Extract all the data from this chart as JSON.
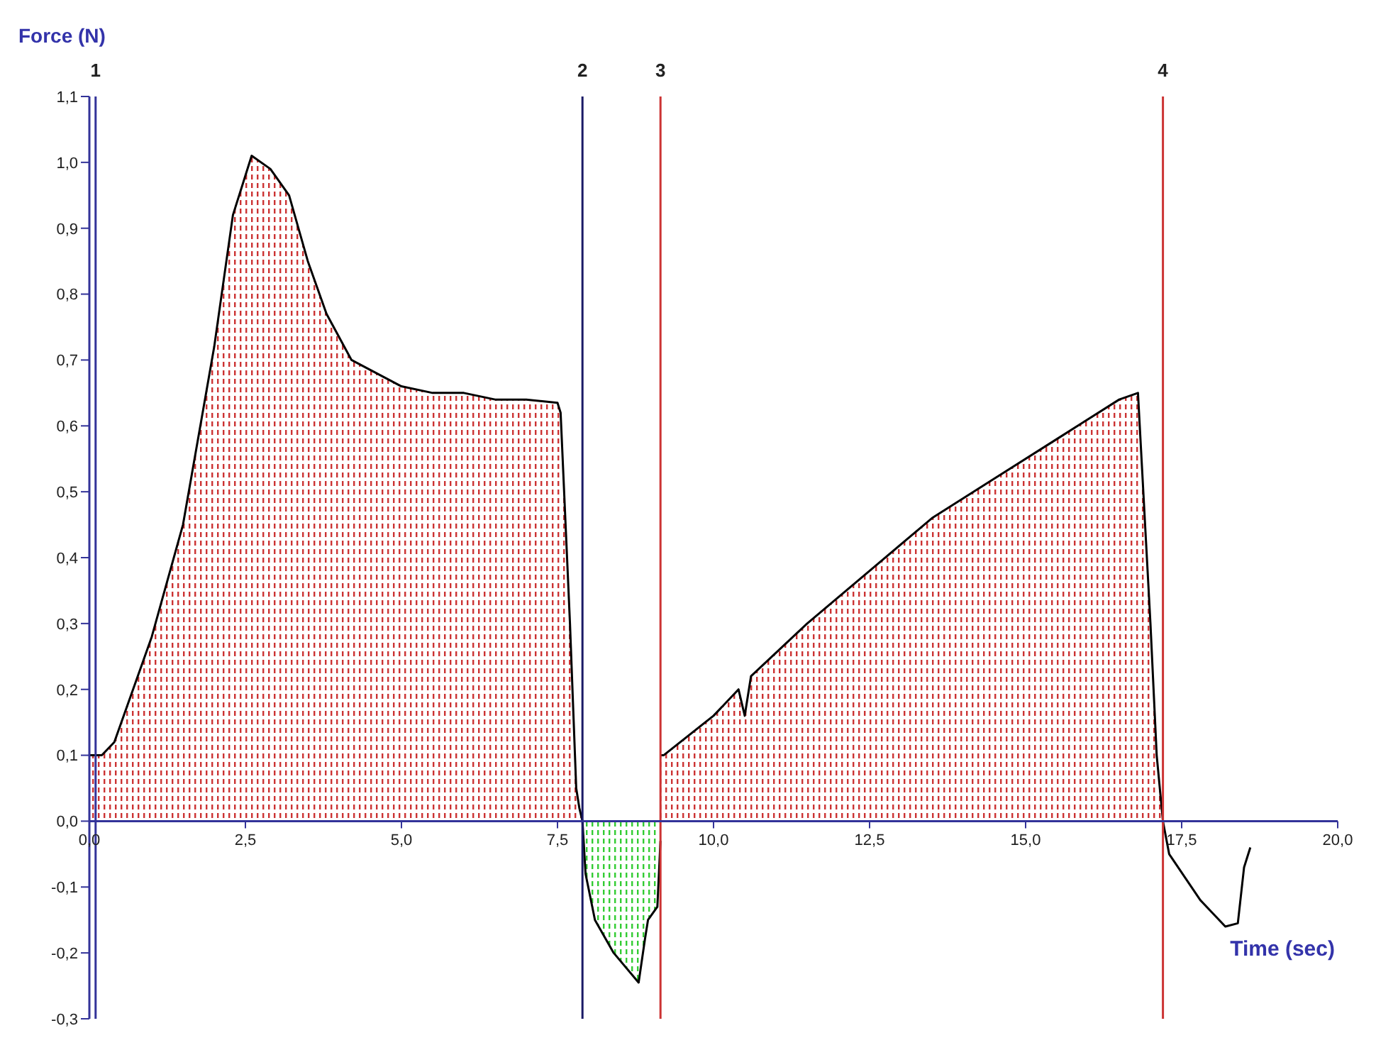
{
  "chart_data": {
    "type": "line",
    "xlabel": "Time (sec)",
    "ylabel": "Force (N)",
    "xlim": [
      0,
      20
    ],
    "ylim": [
      -0.3,
      1.1
    ],
    "xticks": [
      {
        "value": 0,
        "label": "0,0"
      },
      {
        "value": 2.5,
        "label": "2,5"
      },
      {
        "value": 5,
        "label": "5,0"
      },
      {
        "value": 7.5,
        "label": "7,5"
      },
      {
        "value": 10,
        "label": "10,0"
      },
      {
        "value": 12.5,
        "label": "12,5"
      },
      {
        "value": 15,
        "label": "15,0"
      },
      {
        "value": 17.5,
        "label": "17,5"
      },
      {
        "value": 20,
        "label": "20,0"
      }
    ],
    "yticks": [
      {
        "value": -0.3,
        "label": "-0,3"
      },
      {
        "value": -0.2,
        "label": "-0,2"
      },
      {
        "value": -0.1,
        "label": "-0,1"
      },
      {
        "value": 0,
        "label": "0,0"
      },
      {
        "value": 0.1,
        "label": "0,1"
      },
      {
        "value": 0.2,
        "label": "0,2"
      },
      {
        "value": 0.3,
        "label": "0,3"
      },
      {
        "value": 0.4,
        "label": "0,4"
      },
      {
        "value": 0.5,
        "label": "0,5"
      },
      {
        "value": 0.6,
        "label": "0,6"
      },
      {
        "value": 0.7,
        "label": "0,7"
      },
      {
        "value": 0.8,
        "label": "0,8"
      },
      {
        "value": 0.9,
        "label": "0,9"
      },
      {
        "value": 1.0,
        "label": "1,0"
      },
      {
        "value": 1.1,
        "label": "1,1"
      }
    ],
    "grid": false,
    "legend": false,
    "marker": "none",
    "line_style": "solid",
    "series": [
      {
        "type": "area",
        "color": "#cc3333",
        "x": [
          0,
          0.2,
          0.4,
          1.0,
          1.5,
          2.0,
          2.3,
          2.6,
          2.9,
          3.2,
          3.5,
          3.8,
          4.2,
          5.0,
          5.5,
          6.0,
          6.5,
          7.0,
          7.5,
          7.55,
          7.7,
          7.8,
          7.85,
          7.9
        ],
        "values": [
          0.1,
          0.1,
          0.12,
          0.28,
          0.45,
          0.72,
          0.92,
          1.01,
          0.99,
          0.95,
          0.85,
          0.77,
          0.7,
          0.66,
          0.65,
          0.65,
          0.64,
          0.64,
          0.635,
          0.62,
          0.3,
          0.05,
          0.02,
          0.0
        ]
      },
      {
        "type": "area",
        "color": "#33cc33",
        "x": [
          7.9,
          7.95,
          8.1,
          8.4,
          8.8,
          8.9,
          8.95,
          9.1,
          9.15
        ],
        "values": [
          0.0,
          -0.08,
          -0.15,
          -0.2,
          -0.245,
          -0.18,
          -0.15,
          -0.13,
          -0.03
        ]
      },
      {
        "type": "area",
        "color": "#cc3333",
        "x": [
          9.15,
          9.2,
          10.0,
          10.4,
          10.5,
          10.6,
          11.5,
          12.5,
          13.5,
          14.5,
          15.5,
          16.5,
          16.8,
          17.0,
          17.1,
          17.2
        ],
        "values": [
          0.1,
          0.1,
          0.16,
          0.2,
          0.16,
          0.22,
          0.3,
          0.38,
          0.46,
          0.52,
          0.58,
          0.64,
          0.65,
          0.3,
          0.1,
          0.0
        ]
      },
      {
        "color": "#000000",
        "x": [
          17.2,
          17.3,
          17.8,
          18.2,
          18.4,
          18.5,
          18.6
        ],
        "values": [
          0.0,
          -0.05,
          -0.12,
          -0.16,
          -0.155,
          -0.07,
          -0.04
        ]
      }
    ],
    "ref_lines": [
      {
        "axis": "x",
        "value": 0.1,
        "color": "#333399"
      },
      {
        "axis": "x",
        "value": 7.9,
        "color": "#1a1a66"
      },
      {
        "axis": "x",
        "value": 9.15,
        "color": "#cc3333"
      },
      {
        "axis": "x",
        "value": 17.2,
        "color": "#cc3333"
      }
    ],
    "annotations": [
      "1",
      "2",
      "3",
      "4"
    ]
  }
}
